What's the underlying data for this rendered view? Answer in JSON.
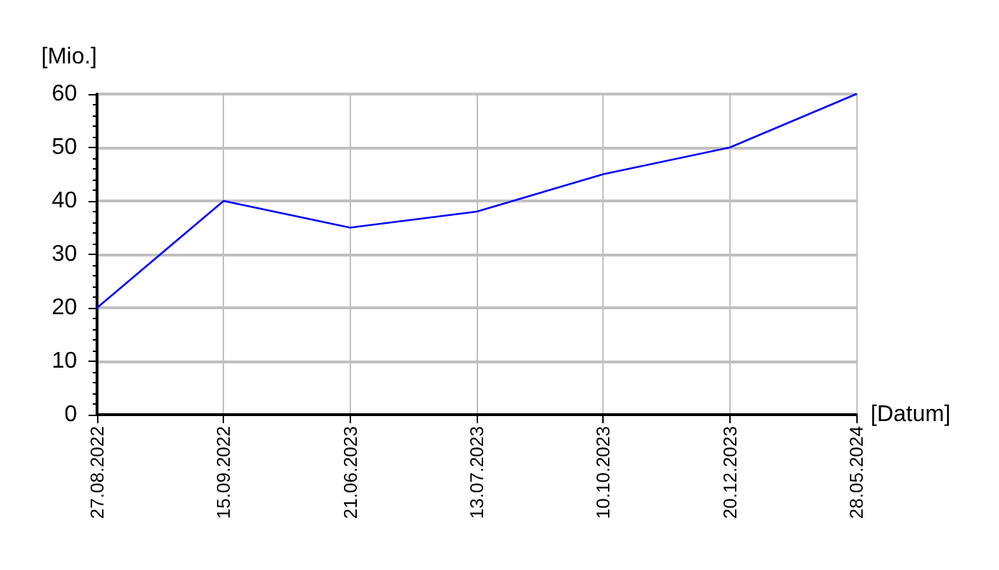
{
  "chart_data": {
    "type": "line",
    "xlabel": "[Datum]",
    "ylabel": "[Mio.]",
    "categories": [
      "27.08.2022",
      "15.09.2022",
      "21.06.2023",
      "13.07.2023",
      "10.10.2023",
      "20.12.2023",
      "28.05.2024"
    ],
    "series": [
      {
        "color": "#0000ff",
        "values": [
          20,
          40,
          35,
          38,
          45,
          50,
          60
        ]
      }
    ],
    "ylim": [
      0,
      60
    ],
    "yticks": [
      0,
      10,
      20,
      30,
      40,
      50,
      60
    ],
    "grid": true,
    "marker": "none",
    "line_style": "solid"
  }
}
